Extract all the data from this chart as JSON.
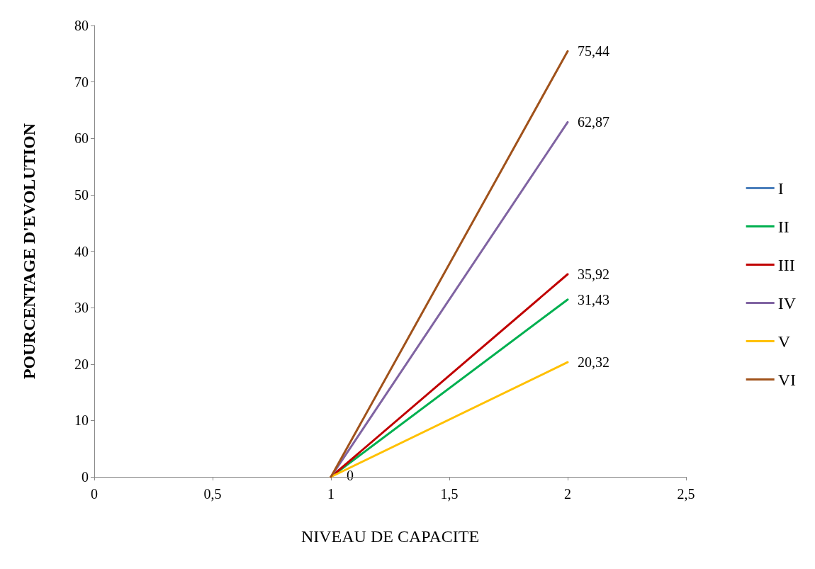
{
  "chart_data": {
    "type": "line",
    "xlabel": "NIVEAU DE CAPACITE",
    "ylabel": "POURCENTAGE D'EVOLUTION",
    "x": [
      1,
      2
    ],
    "series": [
      {
        "name": "I",
        "color": "#4a7ebb",
        "values": [
          null,
          null
        ]
      },
      {
        "name": "II",
        "color": "#00b050",
        "values": [
          0,
          31.43
        ],
        "value_labels": [
          null,
          "31,43"
        ]
      },
      {
        "name": "III",
        "color": "#c00000",
        "values": [
          0,
          35.92
        ],
        "value_labels": [
          null,
          "35,92"
        ]
      },
      {
        "name": "IV",
        "color": "#8064a2",
        "values": [
          0,
          62.87
        ],
        "value_labels": [
          null,
          "62,87"
        ]
      },
      {
        "name": "V",
        "color": "#ffc000",
        "values": [
          0,
          20.32
        ],
        "value_labels": [
          null,
          "20,32"
        ]
      },
      {
        "name": "VI",
        "color": "#a0521b",
        "values": [
          0,
          75.44
        ],
        "value_labels": [
          null,
          "75,44"
        ]
      }
    ],
    "xlim": [
      0,
      2.5
    ],
    "xticks": [
      0,
      {
        "value": 0.5,
        "label": "0,5"
      },
      1,
      {
        "value": 1.5,
        "label": "1,5"
      },
      2,
      {
        "value": 2.5,
        "label": "2,5"
      }
    ],
    "ylim": [
      0,
      80
    ],
    "yticks": [
      0,
      10,
      20,
      30,
      40,
      50,
      60,
      70,
      80
    ],
    "annotations": [
      {
        "text": "0",
        "x": 1,
        "y": 0
      }
    ],
    "grid": false,
    "legend": "right",
    "marker": "none",
    "line_style": "solid"
  }
}
